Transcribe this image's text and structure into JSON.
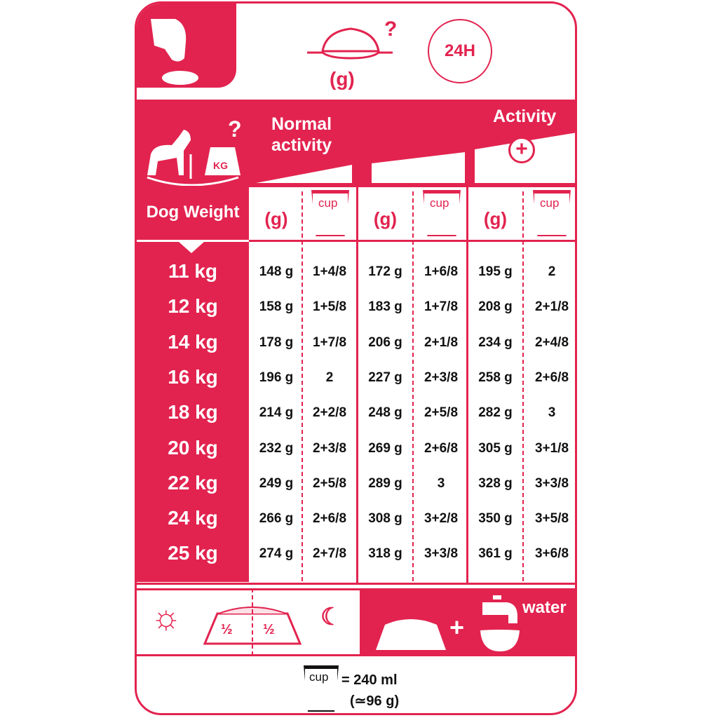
{
  "header": {
    "grams_label": "(g)",
    "clock_label": "24H"
  },
  "table": {
    "dog_weight_label": "Dog Weight",
    "kg_label": "KG",
    "normal_activity_label": "Normal activity",
    "activity_label": "Activity",
    "column_headers": [
      "(g)",
      "cup",
      "(g)",
      "cup",
      "(g)",
      "cup"
    ],
    "rows": [
      {
        "weight": "11 kg",
        "values": [
          "148 g",
          "1+4/8",
          "172 g",
          "1+6/8",
          "195 g",
          "2"
        ]
      },
      {
        "weight": "12 kg",
        "values": [
          "158 g",
          "1+5/8",
          "183 g",
          "1+7/8",
          "208 g",
          "2+1/8"
        ]
      },
      {
        "weight": "14 kg",
        "values": [
          "178 g",
          "1+7/8",
          "206 g",
          "2+1/8",
          "234 g",
          "2+4/8"
        ]
      },
      {
        "weight": "16 kg",
        "values": [
          "196 g",
          "2",
          "227 g",
          "2+3/8",
          "258 g",
          "2+6/8"
        ]
      },
      {
        "weight": "18 kg",
        "values": [
          "214 g",
          "2+2/8",
          "248 g",
          "2+5/8",
          "282 g",
          "3"
        ]
      },
      {
        "weight": "20 kg",
        "values": [
          "232 g",
          "2+3/8",
          "269 g",
          "2+6/8",
          "305 g",
          "3+1/8"
        ]
      },
      {
        "weight": "22 kg",
        "values": [
          "249 g",
          "2+5/8",
          "289 g",
          "3",
          "328 g",
          "3+3/8"
        ]
      },
      {
        "weight": "24 kg",
        "values": [
          "266 g",
          "2+6/8",
          "308 g",
          "3+2/8",
          "350 g",
          "3+5/8"
        ]
      },
      {
        "weight": "25 kg",
        "values": [
          "274 g",
          "2+7/8",
          "318 g",
          "3+3/8",
          "361 g",
          "3+6/8"
        ]
      }
    ]
  },
  "feeding": {
    "half_left": "½",
    "half_right": "½",
    "water_label": "water"
  },
  "footer": {
    "cup_label": "cup",
    "cup_ml": "= 240 ml",
    "cup_g": "(≃96 g)"
  },
  "colors": {
    "accent": "#e2234f"
  }
}
